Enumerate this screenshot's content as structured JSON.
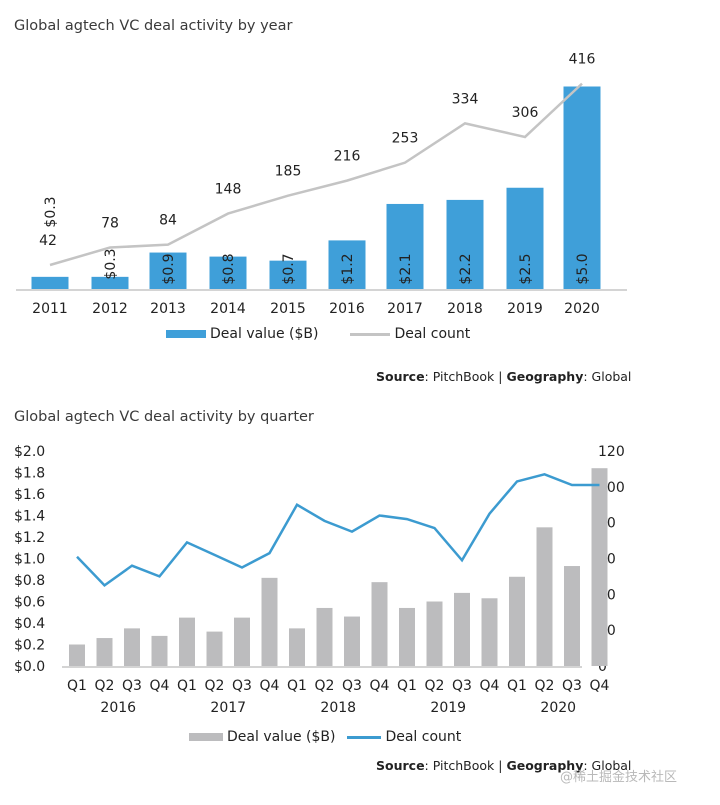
{
  "chart_data": [
    {
      "type": "bar",
      "title": "Global agtech VC deal activity by year",
      "categories": [
        "2011",
        "2012",
        "2013",
        "2014",
        "2015",
        "2016",
        "2017",
        "2018",
        "2019",
        "2020"
      ],
      "series": [
        {
          "name": "Deal value ($B)",
          "kind": "bar",
          "axis": "left",
          "values": [
            0.3,
            0.3,
            0.9,
            0.8,
            0.7,
            1.2,
            2.1,
            2.2,
            2.5,
            5.0
          ],
          "labels": [
            "$0.3",
            "$0.3",
            "$0.9",
            "$0.8",
            "$0.7",
            "$1.2",
            "$2.1",
            "$2.2",
            "$2.5",
            "$5.0"
          ],
          "color": "#3f9fd9"
        },
        {
          "name": "Deal count",
          "kind": "line",
          "axis": "right",
          "values": [
            42,
            78,
            84,
            148,
            185,
            216,
            253,
            334,
            306,
            416
          ],
          "labels": [
            "42",
            "78",
            "84",
            "148",
            "185",
            "216",
            "253",
            "334",
            "306",
            "416"
          ],
          "color": "#c4c4c4"
        }
      ],
      "xlabel": "",
      "ylabel": "",
      "grid": false,
      "legend_position": "bottom",
      "legend": [
        "Deal value ($B)",
        "Deal count"
      ],
      "source": {
        "source_label": "Source",
        "source_value": "PitchBook",
        "separator": "|",
        "geo_label": "Geography",
        "geo_value": "Global"
      }
    },
    {
      "type": "bar",
      "title": "Global agtech VC deal activity by quarter",
      "categories": [
        "Q1",
        "Q2",
        "Q3",
        "Q4",
        "Q1",
        "Q2",
        "Q3",
        "Q4",
        "Q1",
        "Q2",
        "Q3",
        "Q4",
        "Q1",
        "Q2",
        "Q3",
        "Q4",
        "Q1",
        "Q2",
        "Q3",
        "Q4"
      ],
      "groups": [
        "2016",
        "2017",
        "2018",
        "2019",
        "2020"
      ],
      "series": [
        {
          "name": "Deal value ($B)",
          "kind": "bar",
          "axis": "left",
          "values": [
            0.2,
            0.26,
            0.35,
            0.28,
            0.45,
            0.32,
            0.45,
            0.82,
            0.35,
            0.54,
            0.46,
            0.78,
            0.54,
            0.6,
            0.68,
            0.63,
            0.83,
            1.29,
            0.93,
            1.84
          ],
          "color": "#bcbcbe"
        },
        {
          "name": "Deal count",
          "kind": "line",
          "axis": "right",
          "values": [
            61,
            45,
            56,
            50,
            69,
            62,
            55,
            63,
            90,
            81,
            75,
            84,
            82,
            77,
            59,
            85,
            103,
            107,
            101,
            101
          ],
          "color": "#3c9bd0"
        }
      ],
      "ylim": [
        0,
        2.0
      ],
      "y2lim": [
        0,
        120
      ],
      "yticks": [
        "$0.0",
        "$0.2",
        "$0.4",
        "$0.6",
        "$0.8",
        "$1.0",
        "$1.2",
        "$1.4",
        "$1.6",
        "$1.8",
        "$2.0"
      ],
      "y2ticks": [
        "0",
        "20",
        "40",
        "60",
        "80",
        "100",
        "120"
      ],
      "xlabel": "",
      "ylabel": "",
      "grid": false,
      "legend_position": "bottom",
      "legend": [
        "Deal value ($B)",
        "Deal count"
      ],
      "source": {
        "source_label": "Source",
        "source_value": "PitchBook",
        "separator": "|",
        "geo_label": "Geography",
        "geo_value": "Global"
      }
    }
  ],
  "watermark": "@稀土掘金技术社区"
}
